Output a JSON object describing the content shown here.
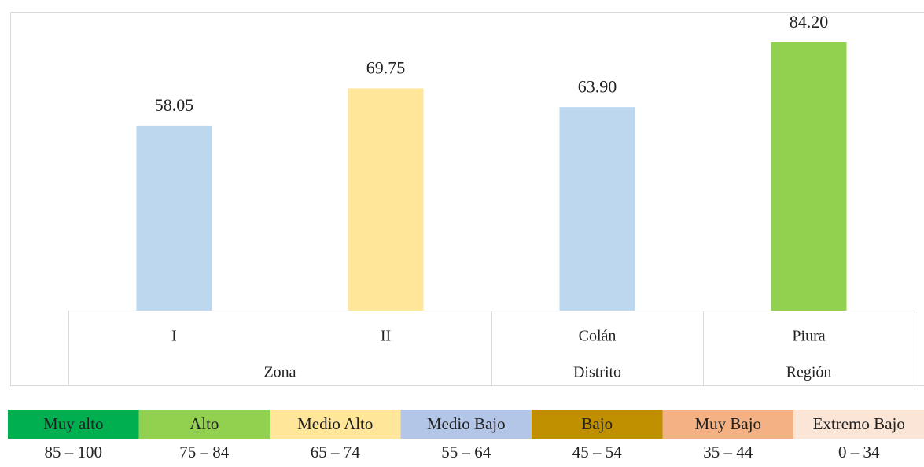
{
  "chart_data": {
    "type": "bar",
    "categories": [
      "I",
      "II",
      "Colán",
      "Piura"
    ],
    "values": [
      58.05,
      69.75,
      63.9,
      84.2
    ],
    "value_labels": [
      "58.05",
      "69.75",
      "63.90",
      "84.20"
    ],
    "colors": [
      "#bdd7ee",
      "#ffe699",
      "#bdd7ee",
      "#92d050"
    ],
    "groups": [
      {
        "name": "Zona",
        "size": 2
      },
      {
        "name": "Distrito",
        "size": 1
      },
      {
        "name": "Región",
        "size": 1
      }
    ]
  },
  "scale": [
    {
      "label": "Muy alto",
      "range": "85 – 100",
      "color": "#00b050"
    },
    {
      "label": "Alto",
      "range": "75 – 84",
      "color": "#92d050"
    },
    {
      "label": "Medio Alto",
      "range": "65 – 74",
      "color": "#ffe699"
    },
    {
      "label": "Medio Bajo",
      "range": "55 – 64",
      "color": "#b4c6e7"
    },
    {
      "label": "Bajo",
      "range": "45 – 54",
      "color": "#bf8f00"
    },
    {
      "label": "Muy Bajo",
      "range": "35 – 44",
      "color": "#f4b183"
    },
    {
      "label": "Extremo Bajo",
      "range": "0 – 34",
      "color": "#fbe5d6"
    }
  ]
}
